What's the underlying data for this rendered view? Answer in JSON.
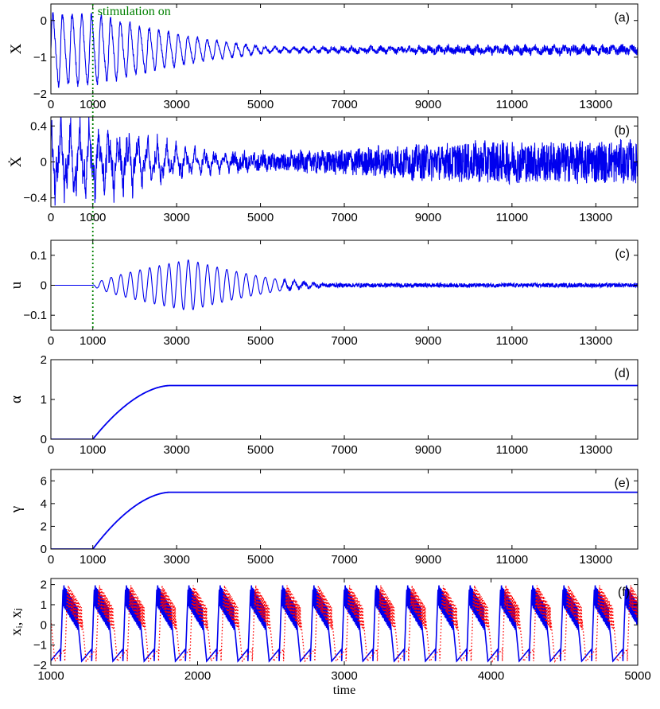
{
  "colors": {
    "series": "#0000ee",
    "secondary": "#ff0000",
    "stimulation": "#008000",
    "axis": "#000000"
  },
  "annotation": {
    "text": "stimulation on",
    "x": 1000
  },
  "chart_data": [
    {
      "id": "a",
      "type": "line",
      "panel_label": "(a)",
      "ylabel": "X",
      "xlim": [
        0,
        14000
      ],
      "ylim": [
        -2,
        0.45
      ],
      "xticks": [
        0,
        1000,
        3000,
        5000,
        7000,
        9000,
        11000,
        13000
      ],
      "xtick_labels": [
        "0",
        "1000",
        "3000",
        "5000",
        "7000",
        "9000",
        "11000",
        "13000"
      ],
      "yticks": [
        -2,
        -1,
        0
      ],
      "ytick_labels": [
        "−2",
        "−1",
        "0"
      ],
      "stimulation_line": true,
      "series": [
        {
          "name": "X",
          "model": "oscillation",
          "period": 230,
          "mean": -0.8,
          "amp_start": 0.9,
          "amp_end_early": 0.05,
          "decay_start": 1000,
          "decay_end": 5800,
          "noise_late": 0.08,
          "skew": 0.45
        }
      ]
    },
    {
      "id": "b",
      "type": "line",
      "panel_label": "(b)",
      "ylabel": "Ẋ",
      "xlim": [
        0,
        14000
      ],
      "ylim": [
        -0.5,
        0.5
      ],
      "xticks": [
        0,
        1000,
        3000,
        5000,
        7000,
        9000,
        11000,
        13000
      ],
      "xtick_labels": [
        "0",
        "1000",
        "3000",
        "5000",
        "7000",
        "9000",
        "11000",
        "13000"
      ],
      "yticks": [
        -0.4,
        0,
        0.4
      ],
      "ytick_labels": [
        "−0.4",
        "0",
        "0.4"
      ],
      "stimulation_line": true,
      "series": [
        {
          "name": "dX/dt",
          "model": "derivative",
          "period": 230,
          "mean": 0,
          "amp_start": 0.42,
          "amp_end_early": 0.04,
          "decay_start": 1000,
          "decay_end": 5800,
          "noise_late": 0.16
        }
      ]
    },
    {
      "id": "c",
      "type": "line",
      "panel_label": "(c)",
      "ylabel": "u",
      "xlim": [
        0,
        14000
      ],
      "ylim": [
        -0.15,
        0.15
      ],
      "xticks": [
        0,
        1000,
        3000,
        5000,
        7000,
        9000,
        11000,
        13000
      ],
      "xtick_labels": [
        "0",
        "1000",
        "3000",
        "5000",
        "7000",
        "9000",
        "11000",
        "13000"
      ],
      "yticks": [
        -0.1,
        0,
        0.1
      ],
      "ytick_labels": [
        "−0.1",
        "0",
        "0.1"
      ],
      "stimulation_line": true,
      "series": [
        {
          "name": "u",
          "model": "control",
          "period": 230,
          "mean": 0,
          "on": 1000,
          "peak_t": 3300,
          "peak_amp": 0.085,
          "end_t": 7000,
          "noise_late": 0.007
        }
      ]
    },
    {
      "id": "d",
      "type": "line",
      "panel_label": "(d)",
      "ylabel": "α",
      "xlim": [
        0,
        14000
      ],
      "ylim": [
        0,
        2
      ],
      "xticks": [
        0,
        1000,
        3000,
        5000,
        7000,
        9000,
        11000,
        13000
      ],
      "xtick_labels": [
        "0",
        "1000",
        "3000",
        "5000",
        "7000",
        "9000",
        "11000",
        "13000"
      ],
      "yticks": [
        0,
        1,
        2
      ],
      "ytick_labels": [
        "0",
        "1",
        "2"
      ],
      "stimulation_line": false,
      "series": [
        {
          "name": "alpha",
          "model": "saturating",
          "on": 1000,
          "sat_t": 2850,
          "final": 1.35
        }
      ]
    },
    {
      "id": "e",
      "type": "line",
      "panel_label": "(e)",
      "ylabel": "γ",
      "xlim": [
        0,
        14000
      ],
      "ylim": [
        0,
        7
      ],
      "xticks": [
        0,
        1000,
        3000,
        5000,
        7000,
        9000,
        11000,
        13000
      ],
      "xtick_labels": [
        "0",
        "1000",
        "3000",
        "5000",
        "7000",
        "9000",
        "11000",
        "13000"
      ],
      "yticks": [
        0,
        2,
        4,
        6
      ],
      "ytick_labels": [
        "0",
        "2",
        "4",
        "6"
      ],
      "stimulation_line": false,
      "series": [
        {
          "name": "gamma",
          "model": "saturating",
          "on": 1000,
          "sat_t": 2850,
          "final": 5.0
        }
      ]
    },
    {
      "id": "f",
      "type": "line",
      "panel_label": "(f)",
      "ylabel": "xᵢ, xⱼ",
      "xlabel": "time",
      "xlim": [
        1000,
        5000
      ],
      "ylim": [
        -2,
        2.3
      ],
      "xticks": [
        1000,
        2000,
        3000,
        4000,
        5000
      ],
      "xtick_labels": [
        "1000",
        "2000",
        "3000",
        "4000",
        "5000"
      ],
      "yticks": [
        -2,
        -1,
        0,
        1,
        2
      ],
      "ytick_labels": [
        "−2",
        "−1",
        "0",
        "1",
        "2"
      ],
      "stimulation_line": false,
      "series": [
        {
          "name": "x_i",
          "model": "burst",
          "color_key": "series",
          "period": 213,
          "phase": 0
        },
        {
          "name": "x_j",
          "model": "burst_dotted",
          "color_key": "secondary",
          "period": 213,
          "phase": 30
        }
      ]
    }
  ]
}
